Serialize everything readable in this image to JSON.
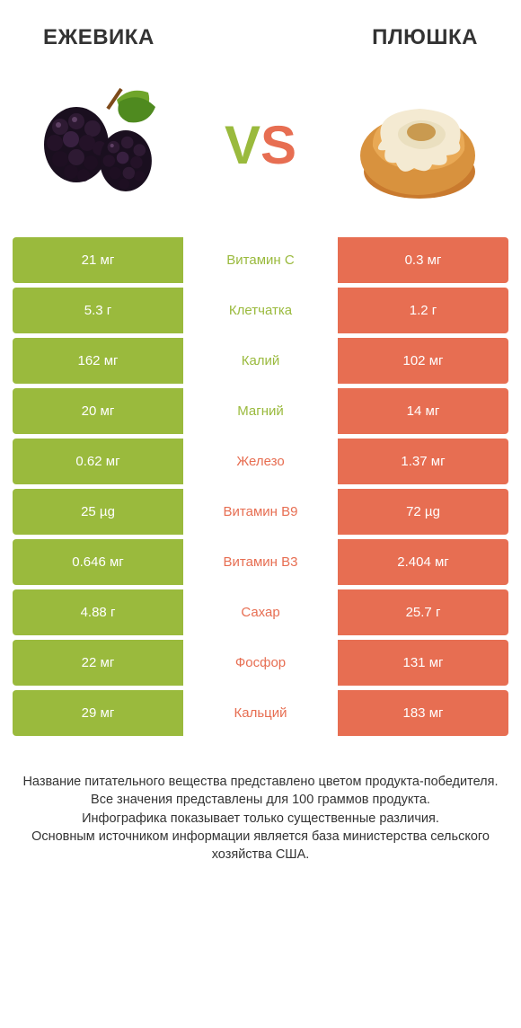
{
  "colors": {
    "left_bar": "#9aba3d",
    "right_bar": "#e76e52",
    "left_label": "#9aba3d",
    "right_label": "#e76e52",
    "bg": "#ffffff",
    "text": "#333333"
  },
  "header": {
    "left_title": "ЕЖЕВИКА",
    "right_title": "ПЛЮШКА",
    "vs_v": "V",
    "vs_s": "S"
  },
  "rows": [
    {
      "left": "21 мг",
      "label": "Витамин C",
      "right": "0.3 мг",
      "winner": "left"
    },
    {
      "left": "5.3 г",
      "label": "Клетчатка",
      "right": "1.2 г",
      "winner": "left"
    },
    {
      "left": "162 мг",
      "label": "Калий",
      "right": "102 мг",
      "winner": "left"
    },
    {
      "left": "20 мг",
      "label": "Магний",
      "right": "14 мг",
      "winner": "left"
    },
    {
      "left": "0.62 мг",
      "label": "Железо",
      "right": "1.37 мг",
      "winner": "right"
    },
    {
      "left": "25 µg",
      "label": "Витамин B9",
      "right": "72 µg",
      "winner": "right"
    },
    {
      "left": "0.646 мг",
      "label": "Витамин B3",
      "right": "2.404 мг",
      "winner": "right"
    },
    {
      "left": "4.88 г",
      "label": "Сахар",
      "right": "25.7 г",
      "winner": "right"
    },
    {
      "left": "22 мг",
      "label": "Фосфор",
      "right": "131 мг",
      "winner": "right"
    },
    {
      "left": "29 мг",
      "label": "Кальций",
      "right": "183 мг",
      "winner": "right"
    }
  ],
  "footer": {
    "l1": "Название питательного вещества представлено цветом продукта-победителя.",
    "l2": "Все значения представлены для 100 граммов продукта.",
    "l3": "Инфографика показывает только существенные различия.",
    "l4": "Основным источником информации является база министерства сельского хозяйства США."
  }
}
